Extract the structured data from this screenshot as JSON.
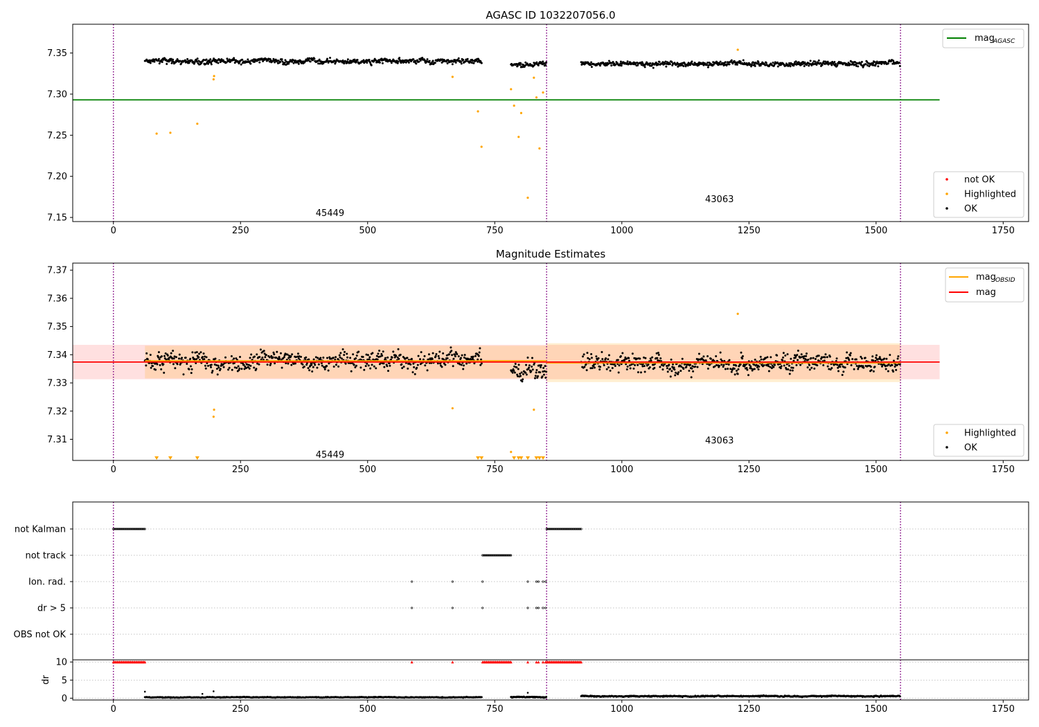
{
  "chart_data": [
    {
      "type": "scatter",
      "title": "AGASC ID 1032207056.0",
      "xlim": [
        -80,
        1800
      ],
      "ylim": [
        7.145,
        7.385
      ],
      "xticks": [
        0,
        250,
        500,
        750,
        1000,
        1250,
        1500,
        1750
      ],
      "yticks": [
        7.15,
        7.2,
        7.25,
        7.3,
        7.35
      ],
      "ytick_labels": [
        "7.15",
        "7.20",
        "7.25",
        "7.30",
        "7.35"
      ],
      "grid": false,
      "vlines": [
        0,
        852,
        1548
      ],
      "vline_color": "#800080",
      "hline": {
        "name": "mag",
        "sub": "AGASC",
        "value": 7.293,
        "x_range": [
          -80,
          1625
        ],
        "color": "#008000"
      },
      "annotations": [
        {
          "text": "45449",
          "x": 426,
          "y": 7.155
        },
        {
          "text": "43063",
          "x": 1192,
          "y": 7.172
        }
      ],
      "legend_lines": [
        {
          "name": "mag",
          "sub": "AGASC",
          "color": "#008000"
        }
      ],
      "legend_markers": [
        {
          "name": "not OK",
          "color": "#ff0000"
        },
        {
          "name": "Highlighted",
          "color": "#ffa500"
        },
        {
          "name": "OK",
          "color": "#000000"
        }
      ],
      "series": [
        {
          "name": "OK",
          "color": "#000000",
          "segments": [
            {
              "x_from": 62,
              "x_to": 725,
              "base": 7.34,
              "spread": 0.011
            },
            {
              "x_from": 782,
              "x_to": 852,
              "base": 7.336,
              "spread": 0.011
            },
            {
              "x_from": 920,
              "x_to": 1548,
              "base": 7.337,
              "spread": 0.011
            }
          ]
        },
        {
          "name": "Highlighted",
          "color": "#ffa500",
          "points": [
            [
              85,
              7.252
            ],
            [
              112,
              7.253
            ],
            [
              165,
              7.264
            ],
            [
              197,
              7.318
            ],
            [
              198,
              7.322
            ],
            [
              667,
              7.321
            ],
            [
              717,
              7.279
            ],
            [
              724,
              7.236
            ],
            [
              782,
              7.306
            ],
            [
              788,
              7.286
            ],
            [
              797,
              7.248
            ],
            [
              802,
              7.277
            ],
            [
              815,
              7.174
            ],
            [
              827,
              7.32
            ],
            [
              832,
              7.296
            ],
            [
              838,
              7.234
            ],
            [
              845,
              7.302
            ],
            [
              1228,
              7.354
            ]
          ]
        }
      ]
    },
    {
      "type": "scatter",
      "title": "Magnitude Estimates",
      "xlim": [
        -80,
        1800
      ],
      "ylim": [
        7.3025,
        7.3725
      ],
      "xticks": [
        0,
        250,
        500,
        750,
        1000,
        1250,
        1500,
        1750
      ],
      "yticks": [
        7.31,
        7.32,
        7.33,
        7.34,
        7.35,
        7.36,
        7.37
      ],
      "ytick_labels": [
        "7.31",
        "7.32",
        "7.33",
        "7.34",
        "7.35",
        "7.36",
        "7.37"
      ],
      "grid": false,
      "vlines": [
        0,
        852,
        1548
      ],
      "vline_color": "#800080",
      "mag_line": {
        "name": "mag",
        "value": 7.3374,
        "x_range": [
          -80,
          1625
        ],
        "color": "#ff0000",
        "band": [
          7.3313,
          7.3435
        ]
      },
      "obsid_mags": [
        {
          "x_range": [
            62,
            852
          ],
          "value": 7.3378,
          "band": [
            7.3316,
            7.3432
          ]
        },
        {
          "x_range": [
            852,
            1548
          ],
          "value": 7.3371,
          "band": [
            7.3303,
            7.3441
          ]
        }
      ],
      "annotations": [
        {
          "text": "45449",
          "x": 426,
          "y": 7.3045
        },
        {
          "text": "43063",
          "x": 1192,
          "y": 7.3095
        }
      ],
      "legend_lines": [
        {
          "name": "mag",
          "sub": "OBSID",
          "color": "#ffa500"
        },
        {
          "name": "mag",
          "sub": "",
          "color": "#ff0000"
        }
      ],
      "legend_markers": [
        {
          "name": "Highlighted",
          "color": "#ffa500"
        },
        {
          "name": "OK",
          "color": "#000000"
        }
      ],
      "series": [
        {
          "name": "OK",
          "color": "#000000",
          "segments": [
            {
              "x_from": 62,
              "x_to": 725,
              "base": 7.338,
              "spread": 0.011
            },
            {
              "x_from": 782,
              "x_to": 852,
              "base": 7.3345,
              "spread": 0.011
            },
            {
              "x_from": 920,
              "x_to": 1548,
              "base": 7.337,
              "spread": 0.011
            }
          ]
        },
        {
          "name": "Highlighted",
          "color": "#ffa500",
          "points": [
            [
              197,
              7.318
            ],
            [
              198,
              7.3205
            ],
            [
              667,
              7.321
            ],
            [
              782,
              7.3055
            ],
            [
              827,
              7.3205
            ],
            [
              1228,
              7.3545
            ]
          ]
        },
        {
          "name": "Highlighted (below range)",
          "color": "#ffa500",
          "marker": "triangle-down",
          "points": [
            [
              85,
              7.3032
            ],
            [
              112,
              7.3032
            ],
            [
              165,
              7.3032
            ],
            [
              717,
              7.3032
            ],
            [
              724,
              7.3032
            ],
            [
              788,
              7.3032
            ],
            [
              797,
              7.3032
            ],
            [
              802,
              7.3032
            ],
            [
              815,
              7.3032
            ],
            [
              832,
              7.3032
            ],
            [
              838,
              7.3032
            ],
            [
              845,
              7.3032
            ]
          ]
        }
      ]
    },
    {
      "type": "scatter",
      "title": "",
      "xlim": [
        -80,
        1800
      ],
      "xticks": [
        0,
        250,
        500,
        750,
        1000,
        1250,
        1500,
        1750
      ],
      "vlines": [
        0,
        852,
        1548
      ],
      "vline_color": "#800080",
      "flag_rows": [
        "not Kalman",
        "not track",
        "Ion. rad.",
        "dr > 5",
        "OBS not OK"
      ],
      "flag_points": [
        {
          "row": "not Kalman",
          "x_from": 0,
          "x_to": 62,
          "step": 2
        },
        {
          "row": "not Kalman",
          "x_from": 852,
          "x_to": 920,
          "step": 2
        },
        {
          "row": "not track",
          "x_from": 726,
          "x_to": 782,
          "step": 2
        },
        {
          "row": "Ion. rad.",
          "xs": [
            587,
            667,
            726,
            815,
            832,
            836,
            845,
            850
          ]
        },
        {
          "row": "dr > 5",
          "xs": [
            587,
            667,
            726,
            815,
            832,
            836,
            845,
            850
          ]
        }
      ],
      "dr": {
        "ylabel": "dr",
        "ylim": [
          -0.5,
          10.6
        ],
        "yticks": [
          0,
          5,
          10
        ],
        "ytick_labels": [
          "0",
          "5",
          "10"
        ],
        "cap_marker_color": "#ff0000",
        "capped_points": {
          "ranges": [
            [
              0,
              62
            ],
            [
              726,
              782
            ],
            [
              852,
              920
            ]
          ],
          "xs": [
            587,
            667,
            815,
            832,
            836,
            845,
            850
          ],
          "value": 10
        },
        "segments": [
          {
            "x_from": 62,
            "x_to": 725,
            "base": 0.25,
            "spread": 0.35
          },
          {
            "x_from": 782,
            "x_to": 852,
            "base": 0.3,
            "spread": 0.5
          },
          {
            "x_from": 920,
            "x_to": 1548,
            "base": 0.55,
            "spread": 0.5
          }
        ],
        "extra_points": [
          [
            62,
            1.8
          ],
          [
            197,
            1.9
          ],
          [
            815,
            1.5
          ],
          [
            175,
            1.2
          ]
        ]
      }
    }
  ],
  "colors": {
    "ok": "#000000",
    "highlighted": "#ffa500",
    "not_ok": "#ff0000",
    "agasc": "#008000",
    "mag": "#ff0000",
    "obsid": "#ffa500",
    "vline": "#800080"
  }
}
